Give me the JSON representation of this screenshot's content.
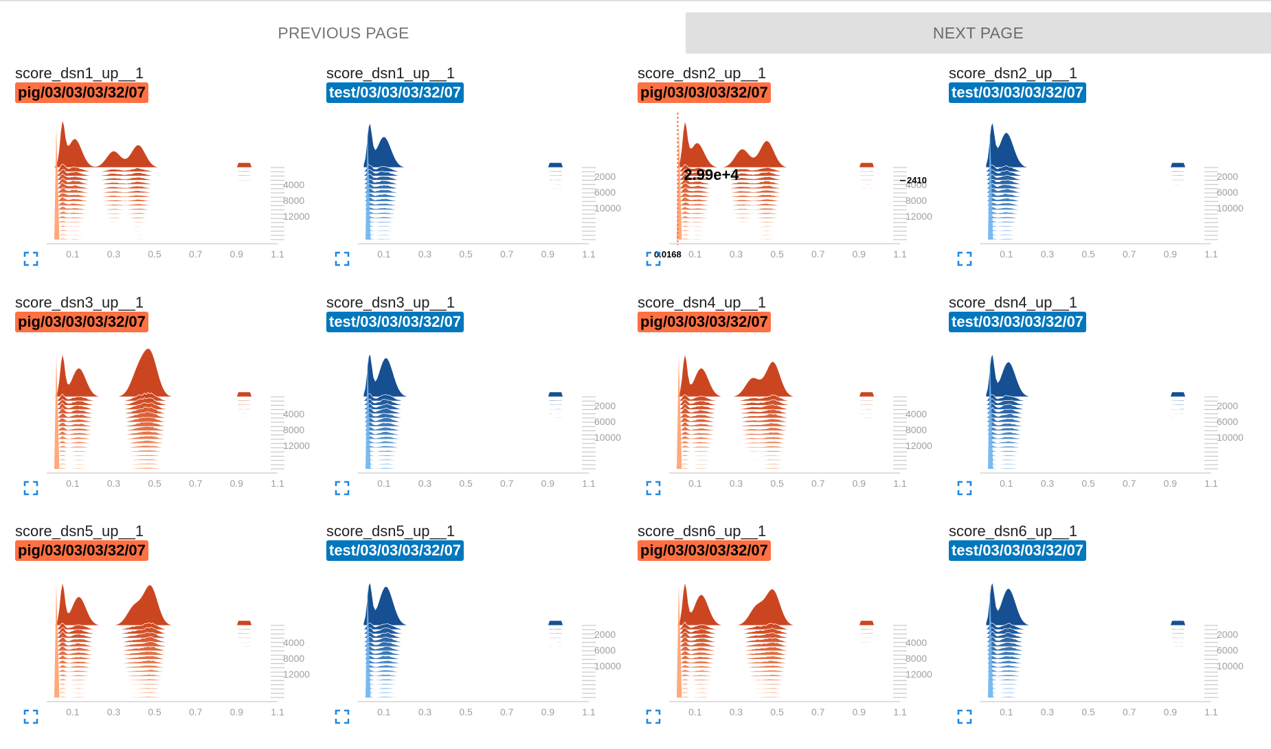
{
  "nav": {
    "previous_label": "PREVIOUS PAGE",
    "next_label": "NEXT PAGE"
  },
  "colors": {
    "pig": "#ff7043",
    "test": "#0277bd"
  },
  "hover": {
    "value": "2.99e+4",
    "x_value": "0.0168",
    "step_value": "2410"
  },
  "cards": [
    {
      "title": "score_dsn1_up__1",
      "run": "pig/03/03/03/32/07",
      "run_type": "pig",
      "peaks": [
        [
          0.05,
          1.0
        ],
        [
          0.11,
          0.7
        ],
        [
          0.3,
          0.4
        ],
        [
          0.42,
          0.55
        ]
      ],
      "ticks": [
        "4000",
        "8000",
        "12000"
      ]
    },
    {
      "title": "score_dsn1_up__1",
      "run": "test/03/03/03/32/07",
      "run_type": "test",
      "peaks": [
        [
          0.03,
          1.0
        ],
        [
          0.1,
          0.75
        ]
      ],
      "ticks": [
        "2000",
        "6000",
        "10000"
      ]
    },
    {
      "title": "score_dsn2_up__1",
      "run": "pig/03/03/03/32/07",
      "run_type": "pig",
      "peaks": [
        [
          0.05,
          1.0
        ],
        [
          0.11,
          0.6
        ],
        [
          0.33,
          0.45
        ],
        [
          0.45,
          0.65
        ]
      ],
      "ticks": [
        "4000",
        "8000",
        "12000"
      ]
    },
    {
      "title": "score_dsn2_up__1",
      "run": "test/03/03/03/32/07",
      "run_type": "test",
      "peaks": [
        [
          0.03,
          1.0
        ],
        [
          0.1,
          0.85
        ]
      ],
      "ticks": [
        "2000",
        "6000",
        "10000"
      ]
    },
    {
      "title": "score_dsn3_up__1",
      "run": "pig/03/03/03/32/07",
      "run_type": "pig",
      "peaks": [
        [
          0.05,
          1.0
        ],
        [
          0.13,
          0.7
        ],
        [
          0.42,
          0.6
        ],
        [
          0.48,
          1.0
        ]
      ],
      "ticks": [
        "4000",
        "8000",
        "12000"
      ]
    },
    {
      "title": "score_dsn3_up__1",
      "run": "test/03/03/03/32/07",
      "run_type": "test",
      "peaks": [
        [
          0.03,
          1.0
        ],
        [
          0.11,
          0.95
        ]
      ],
      "ticks": [
        "2000",
        "6000",
        "10000"
      ]
    },
    {
      "title": "score_dsn4_up__1",
      "run": "pig/03/03/03/32/07",
      "run_type": "pig",
      "peaks": [
        [
          0.05,
          1.0
        ],
        [
          0.13,
          0.7
        ],
        [
          0.38,
          0.45
        ],
        [
          0.48,
          0.85
        ]
      ],
      "ticks": [
        "4000",
        "8000",
        "12000"
      ]
    },
    {
      "title": "score_dsn4_up__1",
      "run": "test/03/03/03/32/07",
      "run_type": "test",
      "peaks": [
        [
          0.03,
          1.0
        ],
        [
          0.11,
          0.85
        ]
      ],
      "ticks": [
        "2000",
        "6000",
        "10000"
      ]
    },
    {
      "title": "score_dsn5_up__1",
      "run": "pig/03/03/03/32/07",
      "run_type": "pig",
      "peaks": [
        [
          0.05,
          1.0
        ],
        [
          0.13,
          0.7
        ],
        [
          0.4,
          0.45
        ],
        [
          0.48,
          0.95
        ]
      ],
      "ticks": [
        "4000",
        "8000",
        "12000"
      ]
    },
    {
      "title": "score_dsn5_up__1",
      "run": "test/03/03/03/32/07",
      "run_type": "test",
      "peaks": [
        [
          0.03,
          1.0
        ],
        [
          0.11,
          0.95
        ]
      ],
      "ticks": [
        "2000",
        "6000",
        "10000"
      ]
    },
    {
      "title": "score_dsn6_up__1",
      "run": "pig/03/03/03/32/07",
      "run_type": "pig",
      "peaks": [
        [
          0.05,
          1.0
        ],
        [
          0.13,
          0.75
        ],
        [
          0.4,
          0.45
        ],
        [
          0.48,
          0.85
        ]
      ],
      "ticks": [
        "4000",
        "8000",
        "12000"
      ]
    },
    {
      "title": "score_dsn6_up__1",
      "run": "test/03/03/03/32/07",
      "run_type": "test",
      "peaks": [
        [
          0.03,
          1.0
        ],
        [
          0.11,
          0.9
        ]
      ],
      "ticks": [
        "2000",
        "6000",
        "10000"
      ]
    }
  ],
  "x_ticks": [
    "0.1",
    "0.3",
    "0.5",
    "0.7",
    "0.9",
    "1.1"
  ]
}
